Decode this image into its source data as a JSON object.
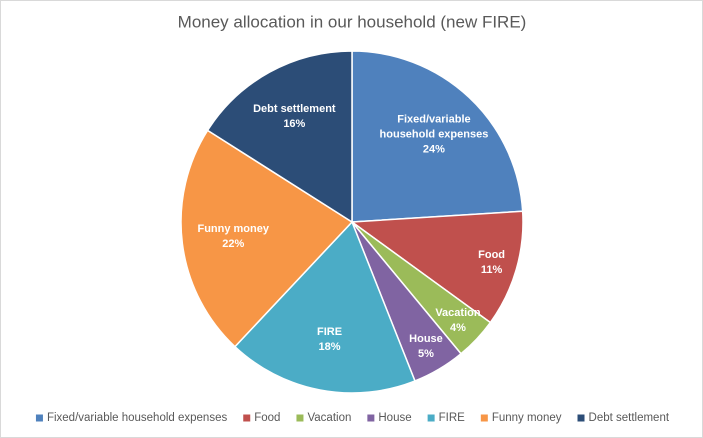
{
  "chart_data": {
    "type": "pie",
    "title": "Money allocation in our household (new FIRE)",
    "categories": [
      "Fixed/variable household expenses",
      "Food",
      "Vacation",
      "House",
      "FIRE",
      "Funny money",
      "Debt settlement"
    ],
    "values": [
      24,
      11,
      4,
      5,
      18,
      22,
      16
    ],
    "value_labels": [
      "24%",
      "11%",
      "4%",
      "5%",
      "18%",
      "22%",
      "16%"
    ],
    "colors": [
      "#4f81bd",
      "#c0504d",
      "#9bbb59",
      "#8064a2",
      "#4bacc6",
      "#f79646",
      "#2c4d77"
    ],
    "legend": "bottom"
  }
}
